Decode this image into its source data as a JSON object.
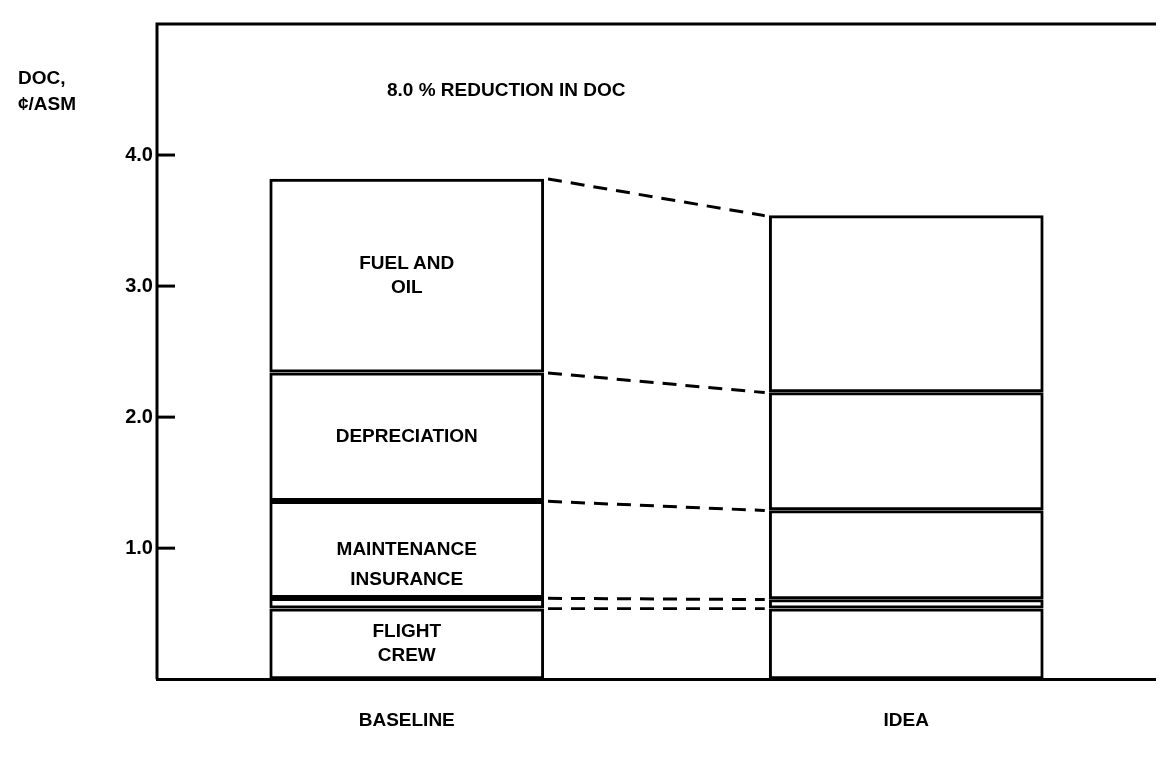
{
  "chart_data": {
    "type": "bar",
    "stacked": true,
    "ylabel": "DOC,\n¢/ASM",
    "annotations": [
      "8.0 % REDUCTION IN DOC"
    ],
    "categories": [
      "BASELINE",
      "IDEA"
    ],
    "ylim": [
      0,
      5
    ],
    "yticks": [
      {
        "value": 1,
        "label": "1.0"
      },
      {
        "value": 2,
        "label": "2.0"
      },
      {
        "value": 3,
        "label": "3.0"
      },
      {
        "value": 4,
        "label": "4.0"
      }
    ],
    "legend": false,
    "series": [
      {
        "name": "FLIGHT CREW",
        "color": "#000000",
        "values": [
          0.54,
          0.54
        ]
      },
      {
        "name": "INSURANCE",
        "color": "#000000",
        "values": [
          0.08,
          0.07
        ]
      },
      {
        "name": "MAINTENANCE",
        "color": "#000000",
        "values": [
          0.74,
          0.68
        ]
      },
      {
        "name": "DEPRECIATION",
        "color": "#000000",
        "values": [
          0.98,
          0.9
        ]
      },
      {
        "name": "FUEL AND OIL",
        "color": "#000000",
        "values": [
          1.48,
          1.35
        ]
      }
    ]
  }
}
